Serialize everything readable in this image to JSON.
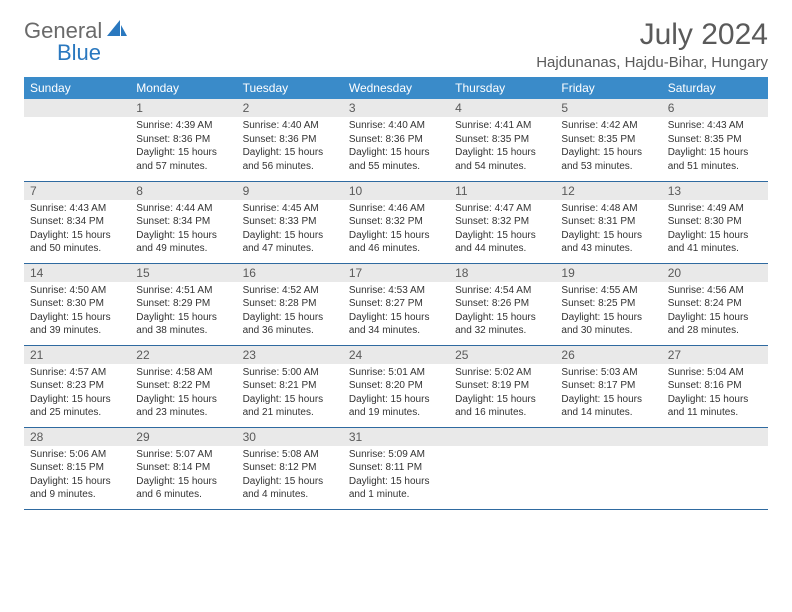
{
  "brand": {
    "text_gray": "General",
    "text_blue": "Blue"
  },
  "title": "July 2024",
  "location": "Hajdunanas, Hajdu-Bihar, Hungary",
  "colors": {
    "header_bg": "#3a8bc9",
    "header_text": "#ffffff",
    "daynum_bg": "#e9e9e9",
    "border": "#2f6aa0",
    "logo_gray": "#6a6a6a",
    "logo_blue": "#2a78bf",
    "title_color": "#5a5a5a",
    "body_text": "#333333",
    "page_bg": "#ffffff"
  },
  "typography": {
    "title_fontsize": 30,
    "location_fontsize": 15,
    "header_fontsize": 12,
    "daynum_fontsize": 12,
    "body_fontsize": 10
  },
  "day_headers": [
    "Sunday",
    "Monday",
    "Tuesday",
    "Wednesday",
    "Thursday",
    "Friday",
    "Saturday"
  ],
  "layout": {
    "first_weekday_offset": 1,
    "rows": 5,
    "cols": 7
  },
  "days": [
    {
      "n": "1",
      "sunrise": "Sunrise: 4:39 AM",
      "sunset": "Sunset: 8:36 PM",
      "daylight": "Daylight: 15 hours and 57 minutes."
    },
    {
      "n": "2",
      "sunrise": "Sunrise: 4:40 AM",
      "sunset": "Sunset: 8:36 PM",
      "daylight": "Daylight: 15 hours and 56 minutes."
    },
    {
      "n": "3",
      "sunrise": "Sunrise: 4:40 AM",
      "sunset": "Sunset: 8:36 PM",
      "daylight": "Daylight: 15 hours and 55 minutes."
    },
    {
      "n": "4",
      "sunrise": "Sunrise: 4:41 AM",
      "sunset": "Sunset: 8:35 PM",
      "daylight": "Daylight: 15 hours and 54 minutes."
    },
    {
      "n": "5",
      "sunrise": "Sunrise: 4:42 AM",
      "sunset": "Sunset: 8:35 PM",
      "daylight": "Daylight: 15 hours and 53 minutes."
    },
    {
      "n": "6",
      "sunrise": "Sunrise: 4:43 AM",
      "sunset": "Sunset: 8:35 PM",
      "daylight": "Daylight: 15 hours and 51 minutes."
    },
    {
      "n": "7",
      "sunrise": "Sunrise: 4:43 AM",
      "sunset": "Sunset: 8:34 PM",
      "daylight": "Daylight: 15 hours and 50 minutes."
    },
    {
      "n": "8",
      "sunrise": "Sunrise: 4:44 AM",
      "sunset": "Sunset: 8:34 PM",
      "daylight": "Daylight: 15 hours and 49 minutes."
    },
    {
      "n": "9",
      "sunrise": "Sunrise: 4:45 AM",
      "sunset": "Sunset: 8:33 PM",
      "daylight": "Daylight: 15 hours and 47 minutes."
    },
    {
      "n": "10",
      "sunrise": "Sunrise: 4:46 AM",
      "sunset": "Sunset: 8:32 PM",
      "daylight": "Daylight: 15 hours and 46 minutes."
    },
    {
      "n": "11",
      "sunrise": "Sunrise: 4:47 AM",
      "sunset": "Sunset: 8:32 PM",
      "daylight": "Daylight: 15 hours and 44 minutes."
    },
    {
      "n": "12",
      "sunrise": "Sunrise: 4:48 AM",
      "sunset": "Sunset: 8:31 PM",
      "daylight": "Daylight: 15 hours and 43 minutes."
    },
    {
      "n": "13",
      "sunrise": "Sunrise: 4:49 AM",
      "sunset": "Sunset: 8:30 PM",
      "daylight": "Daylight: 15 hours and 41 minutes."
    },
    {
      "n": "14",
      "sunrise": "Sunrise: 4:50 AM",
      "sunset": "Sunset: 8:30 PM",
      "daylight": "Daylight: 15 hours and 39 minutes."
    },
    {
      "n": "15",
      "sunrise": "Sunrise: 4:51 AM",
      "sunset": "Sunset: 8:29 PM",
      "daylight": "Daylight: 15 hours and 38 minutes."
    },
    {
      "n": "16",
      "sunrise": "Sunrise: 4:52 AM",
      "sunset": "Sunset: 8:28 PM",
      "daylight": "Daylight: 15 hours and 36 minutes."
    },
    {
      "n": "17",
      "sunrise": "Sunrise: 4:53 AM",
      "sunset": "Sunset: 8:27 PM",
      "daylight": "Daylight: 15 hours and 34 minutes."
    },
    {
      "n": "18",
      "sunrise": "Sunrise: 4:54 AM",
      "sunset": "Sunset: 8:26 PM",
      "daylight": "Daylight: 15 hours and 32 minutes."
    },
    {
      "n": "19",
      "sunrise": "Sunrise: 4:55 AM",
      "sunset": "Sunset: 8:25 PM",
      "daylight": "Daylight: 15 hours and 30 minutes."
    },
    {
      "n": "20",
      "sunrise": "Sunrise: 4:56 AM",
      "sunset": "Sunset: 8:24 PM",
      "daylight": "Daylight: 15 hours and 28 minutes."
    },
    {
      "n": "21",
      "sunrise": "Sunrise: 4:57 AM",
      "sunset": "Sunset: 8:23 PM",
      "daylight": "Daylight: 15 hours and 25 minutes."
    },
    {
      "n": "22",
      "sunrise": "Sunrise: 4:58 AM",
      "sunset": "Sunset: 8:22 PM",
      "daylight": "Daylight: 15 hours and 23 minutes."
    },
    {
      "n": "23",
      "sunrise": "Sunrise: 5:00 AM",
      "sunset": "Sunset: 8:21 PM",
      "daylight": "Daylight: 15 hours and 21 minutes."
    },
    {
      "n": "24",
      "sunrise": "Sunrise: 5:01 AM",
      "sunset": "Sunset: 8:20 PM",
      "daylight": "Daylight: 15 hours and 19 minutes."
    },
    {
      "n": "25",
      "sunrise": "Sunrise: 5:02 AM",
      "sunset": "Sunset: 8:19 PM",
      "daylight": "Daylight: 15 hours and 16 minutes."
    },
    {
      "n": "26",
      "sunrise": "Sunrise: 5:03 AM",
      "sunset": "Sunset: 8:17 PM",
      "daylight": "Daylight: 15 hours and 14 minutes."
    },
    {
      "n": "27",
      "sunrise": "Sunrise: 5:04 AM",
      "sunset": "Sunset: 8:16 PM",
      "daylight": "Daylight: 15 hours and 11 minutes."
    },
    {
      "n": "28",
      "sunrise": "Sunrise: 5:06 AM",
      "sunset": "Sunset: 8:15 PM",
      "daylight": "Daylight: 15 hours and 9 minutes."
    },
    {
      "n": "29",
      "sunrise": "Sunrise: 5:07 AM",
      "sunset": "Sunset: 8:14 PM",
      "daylight": "Daylight: 15 hours and 6 minutes."
    },
    {
      "n": "30",
      "sunrise": "Sunrise: 5:08 AM",
      "sunset": "Sunset: 8:12 PM",
      "daylight": "Daylight: 15 hours and 4 minutes."
    },
    {
      "n": "31",
      "sunrise": "Sunrise: 5:09 AM",
      "sunset": "Sunset: 8:11 PM",
      "daylight": "Daylight: 15 hours and 1 minute."
    }
  ]
}
